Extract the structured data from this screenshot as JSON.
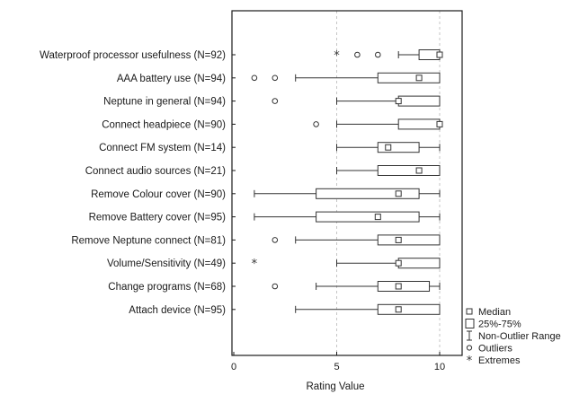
{
  "chart_data": {
    "type": "boxplot",
    "xlabel": "Rating Value",
    "xlim": [
      0,
      11.5
    ],
    "xticks": [
      0,
      5,
      10
    ],
    "xtick_labels": [
      "0",
      "5",
      "10"
    ],
    "grid": "vertical dashed at 5 and 10",
    "legend": {
      "position": "bottom-right",
      "items": [
        {
          "symbol": "median",
          "label": "Median"
        },
        {
          "symbol": "box",
          "label": "25%-75%"
        },
        {
          "symbol": "whisker",
          "label": "Non-Outlier Range"
        },
        {
          "symbol": "outlier",
          "label": "Outliers"
        },
        {
          "symbol": "extreme",
          "label": "Extremes"
        }
      ]
    },
    "categories": [
      {
        "label": "Waterproof processor usefulness (N=92)",
        "whisker": [
          8,
          10
        ],
        "box": [
          9,
          10
        ],
        "median": 10,
        "outliers": [
          6,
          7
        ],
        "extremes": [
          5
        ]
      },
      {
        "label": "AAA battery use (N=94)",
        "whisker": [
          3,
          10
        ],
        "box": [
          7,
          10
        ],
        "median": 9,
        "outliers": [
          1,
          2
        ],
        "extremes": []
      },
      {
        "label": "Neptune in general (N=94)",
        "whisker": [
          5,
          10
        ],
        "box": [
          8,
          10
        ],
        "median": 8,
        "outliers": [
          2
        ],
        "extremes": []
      },
      {
        "label": "Connect headpiece (N=90)",
        "whisker": [
          5,
          10
        ],
        "box": [
          8,
          10
        ],
        "median": 10,
        "outliers": [
          4
        ],
        "extremes": []
      },
      {
        "label": "Connect FM system (N=14)",
        "whisker": [
          5,
          10
        ],
        "box": [
          7,
          9
        ],
        "median": 7.5,
        "outliers": [],
        "extremes": []
      },
      {
        "label": "Connect audio sources (N=21)",
        "whisker": [
          5,
          10
        ],
        "box": [
          7,
          10
        ],
        "median": 9,
        "outliers": [],
        "extremes": []
      },
      {
        "label": "Remove Colour cover (N=90)",
        "whisker": [
          1,
          10
        ],
        "box": [
          4,
          9
        ],
        "median": 8,
        "outliers": [],
        "extremes": []
      },
      {
        "label": "Remove Battery cover (N=95)",
        "whisker": [
          1,
          10
        ],
        "box": [
          4,
          9
        ],
        "median": 7,
        "outliers": [],
        "extremes": []
      },
      {
        "label": "Remove Neptune connect (N=81)",
        "whisker": [
          3,
          10
        ],
        "box": [
          7,
          10
        ],
        "median": 8,
        "outliers": [
          2
        ],
        "extremes": []
      },
      {
        "label": "Volume/Sensitivity (N=49)",
        "whisker": [
          5,
          10
        ],
        "box": [
          8,
          10
        ],
        "median": 8,
        "outliers": [],
        "extremes": [
          1
        ]
      },
      {
        "label": "Change programs (N=68)",
        "whisker": [
          4,
          10
        ],
        "box": [
          7,
          9.5
        ],
        "median": 8,
        "outliers": [
          2
        ],
        "extremes": []
      },
      {
        "label": "Attach device (N=95)",
        "whisker": [
          3,
          10
        ],
        "box": [
          7,
          10
        ],
        "median": 8,
        "outliers": [],
        "extremes": []
      }
    ]
  }
}
